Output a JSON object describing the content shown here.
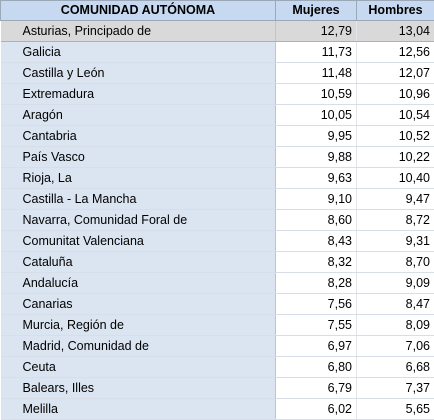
{
  "table": {
    "headers": [
      "COMUNIDAD AUTÓNOMA",
      "Mujeres",
      "Hombres"
    ],
    "rows": [
      [
        "Asturias, Principado de",
        "12,79",
        "13,04"
      ],
      [
        "Galicia",
        "11,73",
        "12,56"
      ],
      [
        "Castilla y León",
        "11,48",
        "12,07"
      ],
      [
        "Extremadura",
        "10,59",
        "10,96"
      ],
      [
        "Aragón",
        "10,05",
        "10,54"
      ],
      [
        "Cantabria",
        "9,95",
        "10,52"
      ],
      [
        "País Vasco",
        "9,88",
        "10,22"
      ],
      [
        "Rioja, La",
        "9,63",
        "10,40"
      ],
      [
        "Castilla - La Mancha",
        "9,10",
        "9,47"
      ],
      [
        "Navarra, Comunidad Foral de",
        "8,60",
        "8,72"
      ],
      [
        "Comunitat Valenciana",
        "8,43",
        "9,31"
      ],
      [
        "Cataluña",
        "8,32",
        "8,70"
      ],
      [
        "Andalucía",
        "8,28",
        "9,09"
      ],
      [
        "Canarias",
        "7,56",
        "8,47"
      ],
      [
        "Murcia, Región de",
        "7,55",
        "8,09"
      ],
      [
        "Madrid, Comunidad de",
        "6,97",
        "7,06"
      ],
      [
        "Ceuta",
        "6,80",
        "6,68"
      ],
      [
        "Balears, Illes",
        "6,79",
        "7,37"
      ],
      [
        "Melilla",
        "6,02",
        "5,65"
      ]
    ]
  },
  "colors": {
    "header_bg": "#c6d9f1",
    "name_column_bg": "#dbe5f1",
    "selected_row_bg": "#d9d9d9"
  }
}
